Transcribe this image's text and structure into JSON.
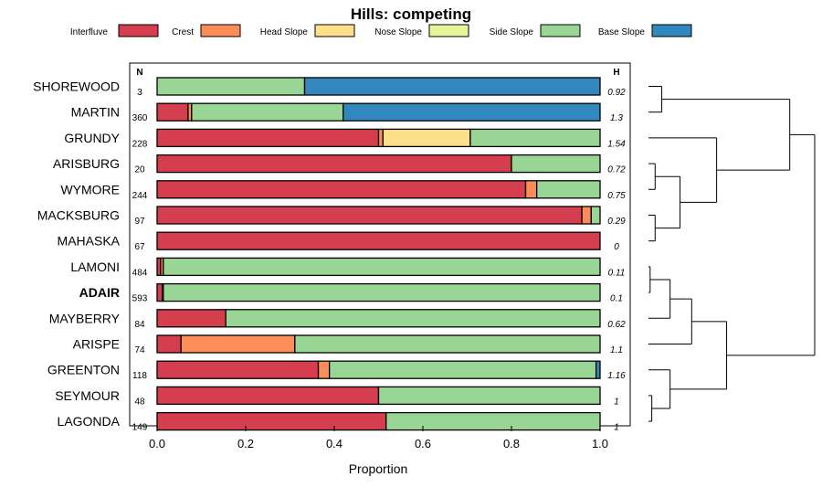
{
  "chart_data": {
    "type": "bar",
    "stacked": true,
    "orientation": "horizontal",
    "title": "Hills: competing",
    "xlabel": "Proportion",
    "ylabel": "",
    "xlim": [
      0,
      1
    ],
    "xticks": [
      "0.0",
      "0.2",
      "0.4",
      "0.6",
      "0.8",
      "1.0"
    ],
    "n_header": "N",
    "h_header": "H",
    "legend": [
      {
        "name": "Interfluve",
        "color": "#d53e4f"
      },
      {
        "name": "Crest",
        "color": "#fc8d59"
      },
      {
        "name": "Head Slope",
        "color": "#fee08b"
      },
      {
        "name": "Nose Slope",
        "color": "#e6f598"
      },
      {
        "name": "Side Slope",
        "color": "#99d594"
      },
      {
        "name": "Base Slope",
        "color": "#3288bd"
      }
    ],
    "rows": [
      {
        "name": "SHOREWOOD",
        "n": "3",
        "h": "0.92",
        "bold": false,
        "values": [
          0,
          0,
          0,
          0,
          0.333,
          0.667
        ]
      },
      {
        "name": "MARTIN",
        "n": "360",
        "h": "1.3",
        "bold": false,
        "values": [
          0.07,
          0.008,
          0,
          0,
          0.342,
          0.58
        ]
      },
      {
        "name": "GRUNDY",
        "n": "228",
        "h": "1.54",
        "bold": false,
        "values": [
          0.5,
          0.01,
          0.197,
          0,
          0.293,
          0
        ]
      },
      {
        "name": "ARISBURG",
        "n": "20",
        "h": "0.72",
        "bold": false,
        "values": [
          0.8,
          0,
          0,
          0,
          0.2,
          0
        ]
      },
      {
        "name": "WYMORE",
        "n": "244",
        "h": "0.75",
        "bold": false,
        "values": [
          0.832,
          0.025,
          0,
          0,
          0.143,
          0
        ]
      },
      {
        "name": "MACKSBURG",
        "n": "97",
        "h": "0.29",
        "bold": false,
        "values": [
          0.959,
          0.021,
          0,
          0,
          0.02,
          0
        ]
      },
      {
        "name": "MAHASKA",
        "n": "67",
        "h": "0",
        "bold": false,
        "values": [
          1,
          0,
          0,
          0,
          0,
          0
        ]
      },
      {
        "name": "LAMONI",
        "n": "484",
        "h": "0.11",
        "bold": false,
        "values": [
          0.008,
          0.006,
          0,
          0,
          0.986,
          0
        ]
      },
      {
        "name": "ADAIR",
        "n": "593",
        "h": "0.1",
        "bold": true,
        "values": [
          0.012,
          0.002,
          0,
          0,
          0.986,
          0
        ]
      },
      {
        "name": "MAYBERRY",
        "n": "84",
        "h": "0.62",
        "bold": false,
        "values": [
          0.155,
          0,
          0,
          0,
          0.845,
          0
        ]
      },
      {
        "name": "ARISPE",
        "n": "74",
        "h": "1.1",
        "bold": false,
        "values": [
          0.054,
          0.257,
          0,
          0,
          0.689,
          0
        ]
      },
      {
        "name": "GREENTON",
        "n": "118",
        "h": "1.16",
        "bold": false,
        "values": [
          0.364,
          0.025,
          0,
          0,
          0.602,
          0.009
        ]
      },
      {
        "name": "SEYMOUR",
        "n": "48",
        "h": "1",
        "bold": false,
        "values": [
          0.5,
          0,
          0,
          0,
          0.5,
          0
        ]
      },
      {
        "name": "LAGONDA",
        "n": "149",
        "h": "1",
        "bold": false,
        "values": [
          0.517,
          0,
          0,
          0,
          0.483,
          0
        ]
      }
    ],
    "dendrogram": {
      "leaf_order": [
        "SHOREWOOD",
        "MARTIN",
        "GRUNDY",
        "ARISBURG",
        "WYMORE",
        "MACKSBURG",
        "MAHASKA",
        "LAMONI",
        "ADAIR",
        "MAYBERRY",
        "ARISPE",
        "GREENTON",
        "SEYMOUR",
        "LAGONDA"
      ],
      "merges": [
        {
          "a": "L7",
          "b": "L8",
          "h": 0.01
        },
        {
          "a": "L12",
          "b": "L13",
          "h": 0.02
        },
        {
          "a": "L5",
          "b": "L6",
          "h": 0.04
        },
        {
          "a": "L3",
          "b": "L4",
          "h": 0.04
        },
        {
          "a": "L0",
          "b": "L1",
          "h": 0.08
        },
        {
          "a": "M0",
          "b": "L9",
          "h": 0.13
        },
        {
          "a": "M3",
          "b": "M2",
          "h": 0.19
        },
        {
          "a": "L11",
          "b": "M1",
          "h": 0.13
        },
        {
          "a": "M5",
          "b": "L10",
          "h": 0.26
        },
        {
          "a": "M7",
          "b": "M8",
          "h": 0.47
        },
        {
          "a": "L2",
          "b": "M6",
          "h": 0.41
        },
        {
          "a": "M4",
          "b": "M10",
          "h": 0.85
        },
        {
          "a": "M11",
          "b": "M9",
          "h": 1.0
        }
      ]
    }
  }
}
